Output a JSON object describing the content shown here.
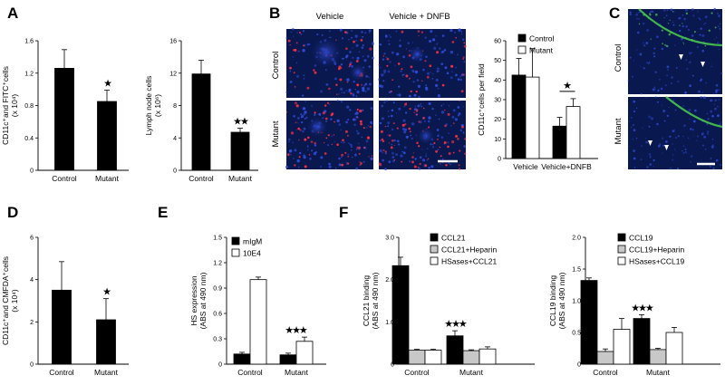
{
  "panels": {
    "A": "A",
    "B": "B",
    "C": "C",
    "D": "D",
    "E": "E",
    "F": "F"
  },
  "micro": {
    "col_vehicle": "Vehicle",
    "col_dnfb": "Vehicle + DNFB",
    "row_control": "Control",
    "row_mutant": "Mutant"
  },
  "colors": {
    "black_bar": "#000000",
    "white_bar": "#ffffff",
    "gray_bar": "#c8c8c8",
    "micro_bg": "#0a1850",
    "nucleus_blue": "#2f4bd6",
    "red_stain": "#ff3040",
    "green_stain": "#4bd24b"
  },
  "chart_data": [
    {
      "id": "A1",
      "type": "bar",
      "ylabel": "CD11c⁺and FITC⁺cells (x 10⁴)",
      "ylim": [
        0,
        1.6
      ],
      "yticks": [
        "0",
        "0.4",
        "0.8",
        "1.2",
        "1.6"
      ],
      "categories": [
        "Control",
        "Mutant"
      ],
      "series": [
        {
          "values": [
            1.26,
            0.85
          ],
          "errors": [
            0.23,
            0.14
          ],
          "color": "#000000"
        }
      ],
      "significance": [
        {
          "category": 1,
          "stars": "★"
        }
      ]
    },
    {
      "id": "A2",
      "type": "bar",
      "ylabel": "Lymph node cells (x 10⁶)",
      "ylim": [
        0,
        16
      ],
      "yticks": [
        "0",
        "4",
        "8",
        "12",
        "16"
      ],
      "categories": [
        "Control",
        "Mutant"
      ],
      "series": [
        {
          "values": [
            11.9,
            4.7
          ],
          "errors": [
            1.7,
            0.5
          ],
          "color": "#000000"
        }
      ],
      "significance": [
        {
          "category": 1,
          "stars": "★★"
        }
      ]
    },
    {
      "id": "B",
      "type": "bar",
      "ylabel": "CD11c⁺cells per field",
      "ylim": [
        0,
        60
      ],
      "yticks": [
        "0",
        "10",
        "20",
        "30",
        "40",
        "50",
        "60"
      ],
      "categories": [
        "Vehicle",
        "Vehicle+DNFB"
      ],
      "legend": [
        "Control",
        "Mutant"
      ],
      "series": [
        {
          "name": "Control",
          "values": [
            42.5,
            16.5
          ],
          "errors": [
            8.5,
            4.5
          ],
          "color": "#000000"
        },
        {
          "name": "Mutant",
          "values": [
            41.5,
            26.5
          ],
          "errors": [
            14.5,
            4.0
          ],
          "color": "#ffffff"
        }
      ],
      "significance": [
        {
          "category": 1,
          "stars": "★",
          "bracket": true
        }
      ]
    },
    {
      "id": "D",
      "type": "bar",
      "ylabel": "CD11c⁺and CMFDA⁺cells (x 10⁴)",
      "ylim": [
        0,
        6
      ],
      "yticks": [
        "0",
        "2",
        "4",
        "6"
      ],
      "categories": [
        "Control",
        "Mutant"
      ],
      "series": [
        {
          "values": [
            3.5,
            2.1
          ],
          "errors": [
            1.35,
            1.0
          ],
          "color": "#000000"
        }
      ],
      "significance": [
        {
          "category": 1,
          "stars": "★"
        }
      ]
    },
    {
      "id": "E",
      "type": "bar",
      "ylabel": "HS expression (ABS at 490 nm)",
      "ylim": [
        0,
        1.5
      ],
      "yticks": [
        "0",
        "0.3",
        "0.6",
        "0.9",
        "1.2",
        "1.5"
      ],
      "categories": [
        "Control",
        "Mutant"
      ],
      "legend": [
        "mIgM",
        "10E4"
      ],
      "series": [
        {
          "name": "mIgM",
          "values": [
            0.12,
            0.11
          ],
          "errors": [
            0.02,
            0.02
          ],
          "color": "#000000"
        },
        {
          "name": "10E4",
          "values": [
            1.0,
            0.27
          ],
          "errors": [
            0.03,
            0.05
          ],
          "color": "#ffffff"
        }
      ],
      "significance": [
        {
          "category": 1,
          "stars": "★★★"
        }
      ]
    },
    {
      "id": "F1",
      "type": "bar",
      "ylabel": "CCL21 binding (ABS at 490 nm)",
      "ylim": [
        0,
        3.0
      ],
      "yticks": [
        "0",
        "1.0",
        "2.0",
        "3.0"
      ],
      "categories": [
        "Control",
        "Mutant"
      ],
      "legend": [
        "CCL21",
        "CCL21+Heparin",
        "HSases+CCL21"
      ],
      "series": [
        {
          "name": "CCL21",
          "values": [
            2.33,
            0.67
          ],
          "errors": [
            0.2,
            0.12
          ],
          "color": "#000000"
        },
        {
          "name": "CCL21+Heparin",
          "values": [
            0.33,
            0.32
          ],
          "errors": [
            0.02,
            0.02
          ],
          "color": "#c8c8c8"
        },
        {
          "name": "HSases+CCL21",
          "values": [
            0.33,
            0.36
          ],
          "errors": [
            0.02,
            0.05
          ],
          "color": "#ffffff"
        }
      ],
      "significance": [
        {
          "category": 1,
          "stars": "★★★"
        }
      ]
    },
    {
      "id": "F2",
      "type": "bar",
      "ylabel": "CCL19 binding (ABS at 490 nm)",
      "ylim": [
        0,
        2.0
      ],
      "yticks": [
        "0",
        "0.5",
        "1.0",
        "1.5",
        "2.0"
      ],
      "categories": [
        "Control",
        "Mutant"
      ],
      "legend": [
        "CCL19",
        "CCL19+Heparin",
        "HSases+CCL19"
      ],
      "series": [
        {
          "name": "CCL19",
          "values": [
            1.32,
            0.72
          ],
          "errors": [
            0.04,
            0.06
          ],
          "color": "#000000"
        },
        {
          "name": "CCL19+Heparin",
          "values": [
            0.2,
            0.23
          ],
          "errors": [
            0.04,
            0.02
          ],
          "color": "#c8c8c8"
        },
        {
          "name": "HSases+CCL19",
          "values": [
            0.55,
            0.5
          ],
          "errors": [
            0.17,
            0.08
          ],
          "color": "#ffffff"
        }
      ],
      "significance": [
        {
          "category": 1,
          "stars": "★★★"
        }
      ]
    }
  ]
}
